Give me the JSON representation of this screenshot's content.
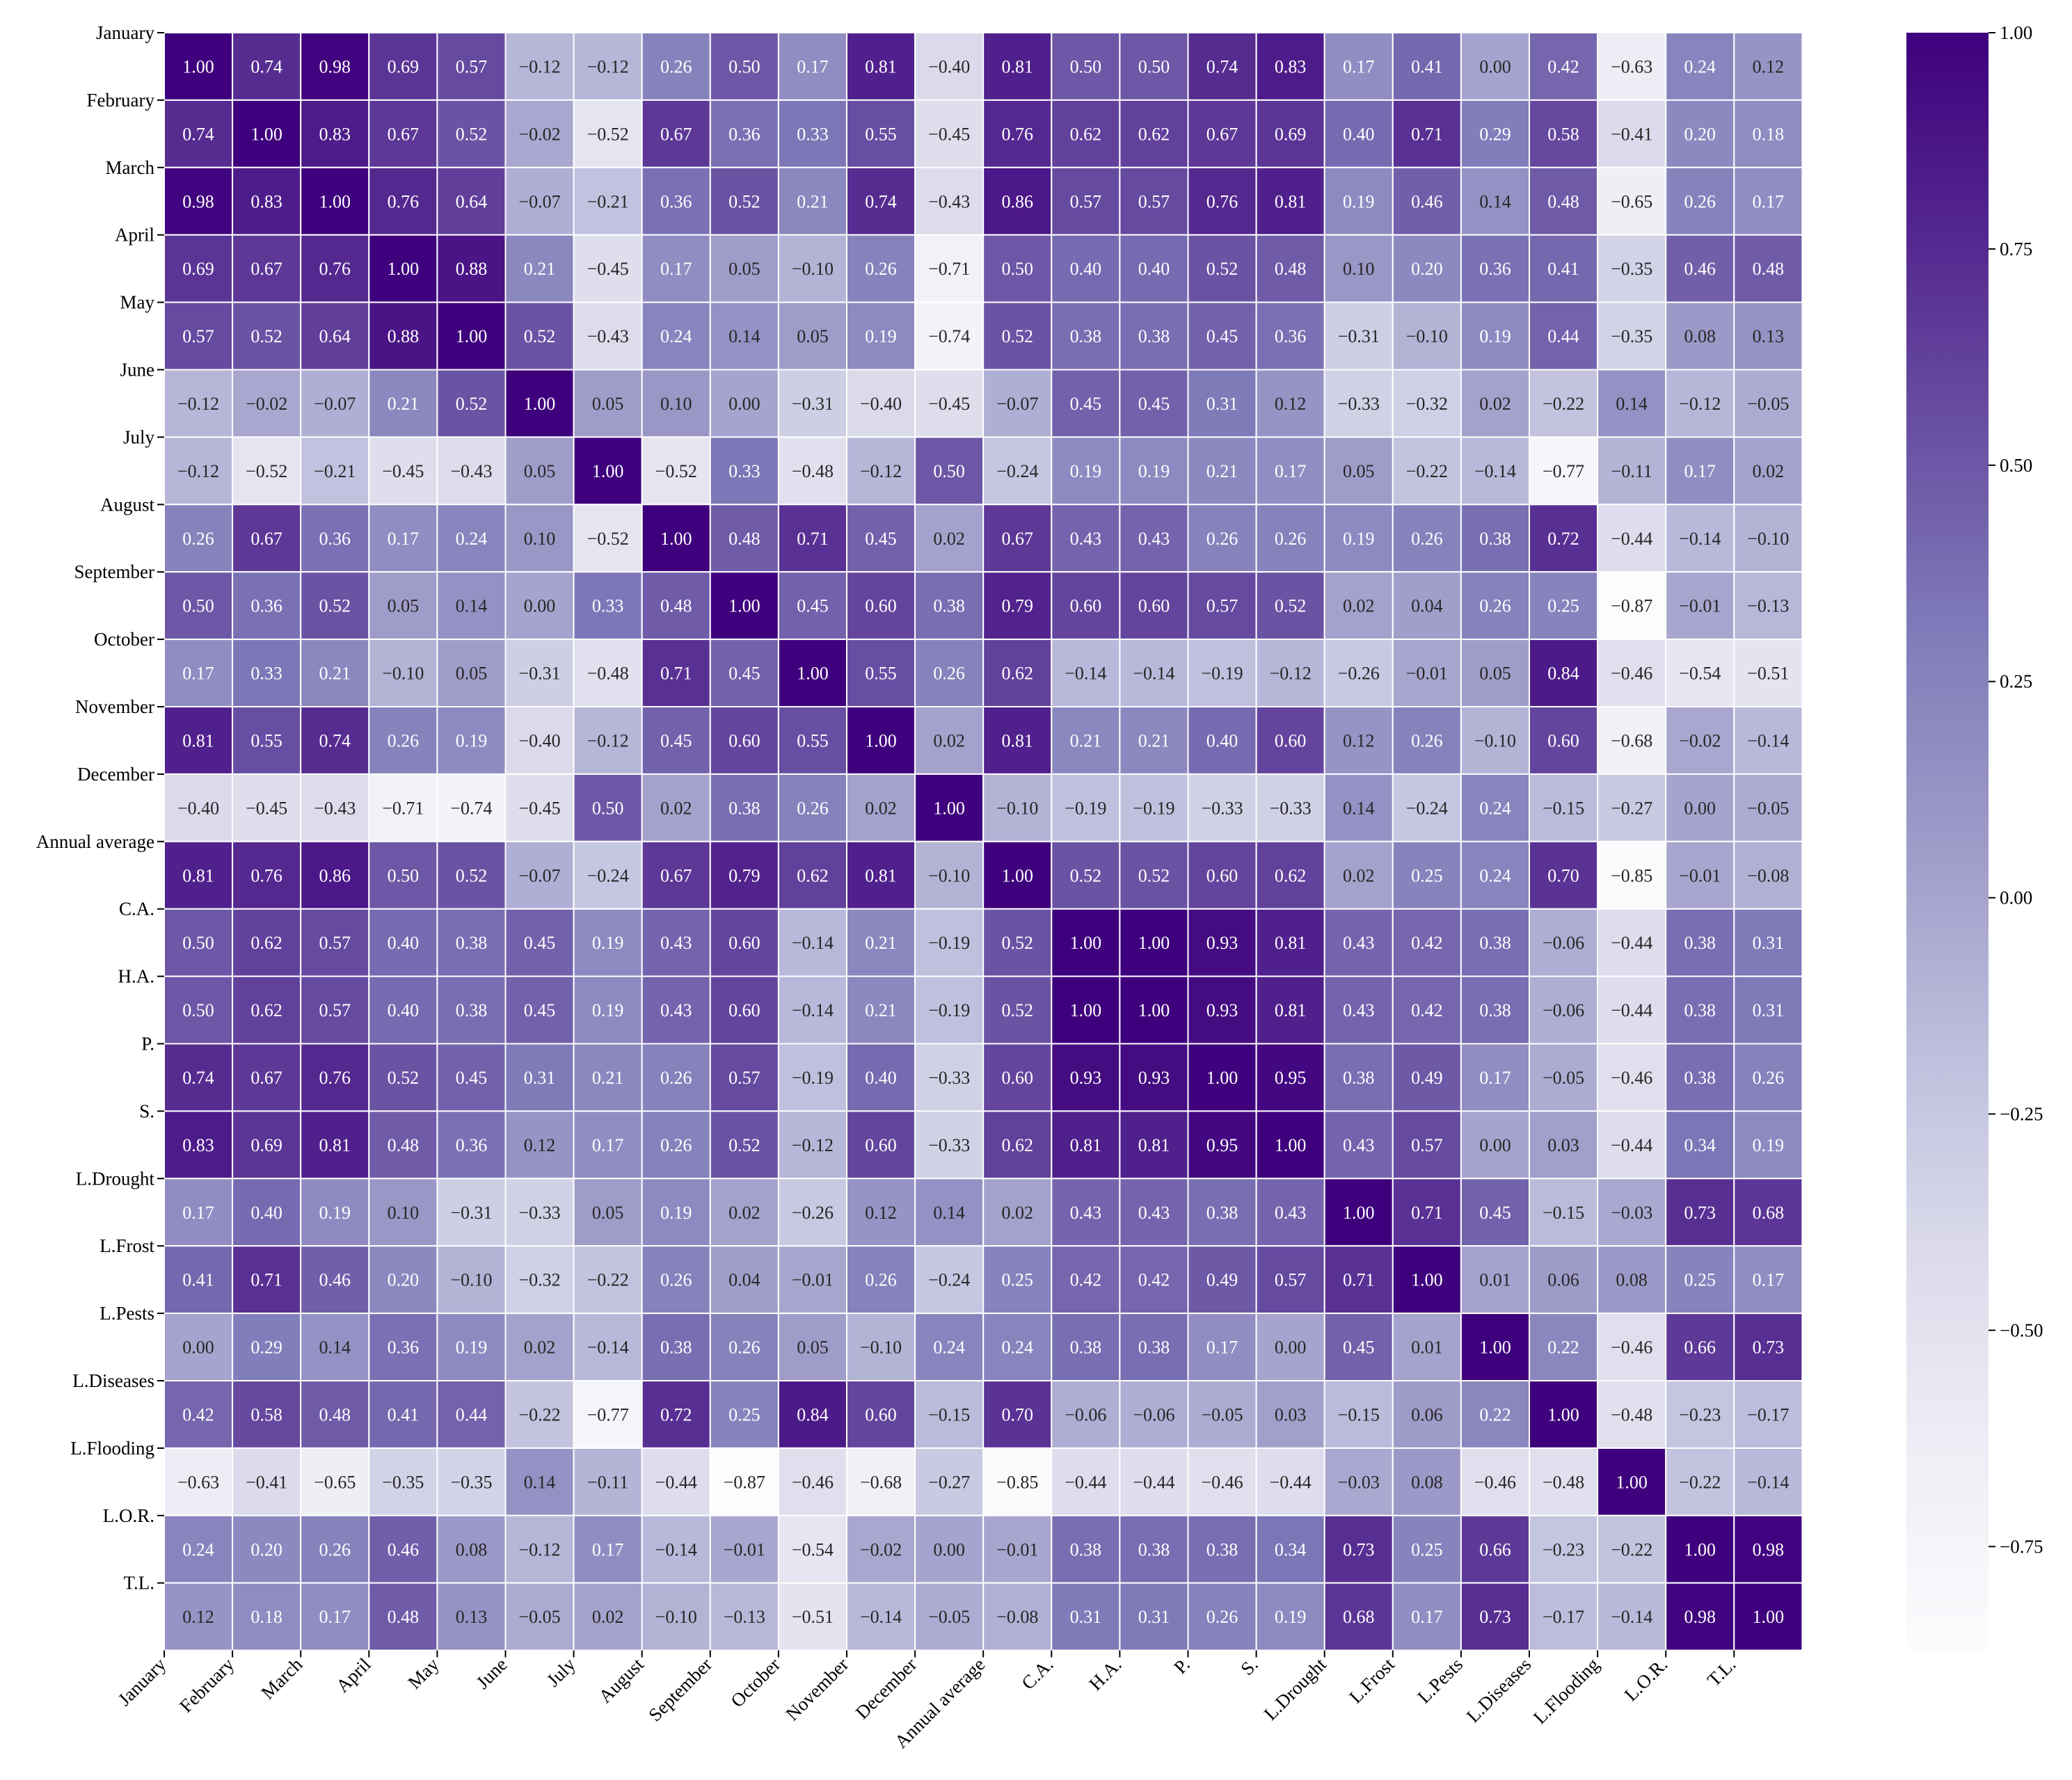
{
  "chart_data": {
    "type": "heatmap",
    "title": "",
    "xlabel": "",
    "ylabel": "",
    "colormap": "Purples",
    "color_low": "#fcfbfd",
    "color_high": "#3f007d",
    "value_range": [
      -0.87,
      1.0
    ],
    "value_format": "2 decimals, minus sign −",
    "labels": [
      "January",
      "February",
      "March",
      "April",
      "May",
      "June",
      "July",
      "August",
      "September",
      "October",
      "November",
      "December",
      "Annual average",
      "C.A.",
      "H.A.",
      "P.",
      "S.",
      "L.Drought",
      "L.Frost",
      "L.Pests",
      "L.Diseases",
      "L.Flooding",
      "L.O.R.",
      "T.L."
    ],
    "matrix": [
      [
        1.0,
        0.74,
        0.98,
        0.69,
        0.57,
        -0.12,
        -0.12,
        0.26,
        0.5,
        0.17,
        0.81,
        -0.4,
        0.81,
        0.5,
        0.5,
        0.74,
        0.83,
        0.17,
        0.41,
        0.0,
        0.42,
        -0.63,
        0.24,
        0.12
      ],
      [
        0.74,
        1.0,
        0.83,
        0.67,
        0.52,
        -0.02,
        -0.52,
        0.67,
        0.36,
        0.33,
        0.55,
        -0.45,
        0.76,
        0.62,
        0.62,
        0.67,
        0.69,
        0.4,
        0.71,
        0.29,
        0.58,
        -0.41,
        0.2,
        0.18
      ],
      [
        0.98,
        0.83,
        1.0,
        0.76,
        0.64,
        -0.07,
        -0.21,
        0.36,
        0.52,
        0.21,
        0.74,
        -0.43,
        0.86,
        0.57,
        0.57,
        0.76,
        0.81,
        0.19,
        0.46,
        0.14,
        0.48,
        -0.65,
        0.26,
        0.17
      ],
      [
        0.69,
        0.67,
        0.76,
        1.0,
        0.88,
        0.21,
        -0.45,
        0.17,
        0.05,
        -0.1,
        0.26,
        -0.71,
        0.5,
        0.4,
        0.4,
        0.52,
        0.48,
        0.1,
        0.2,
        0.36,
        0.41,
        -0.35,
        0.46,
        0.48
      ],
      [
        0.57,
        0.52,
        0.64,
        0.88,
        1.0,
        0.52,
        -0.43,
        0.24,
        0.14,
        0.05,
        0.19,
        -0.74,
        0.52,
        0.38,
        0.38,
        0.45,
        0.36,
        -0.31,
        -0.1,
        0.19,
        0.44,
        -0.35,
        0.08,
        0.13
      ],
      [
        -0.12,
        -0.02,
        -0.07,
        0.21,
        0.52,
        1.0,
        0.05,
        0.1,
        0.0,
        -0.31,
        -0.4,
        -0.45,
        -0.07,
        0.45,
        0.45,
        0.31,
        0.12,
        -0.33,
        -0.32,
        0.02,
        -0.22,
        0.14,
        -0.12,
        -0.05
      ],
      [
        -0.12,
        -0.52,
        -0.21,
        -0.45,
        -0.43,
        0.05,
        1.0,
        -0.52,
        0.33,
        -0.48,
        -0.12,
        0.5,
        -0.24,
        0.19,
        0.19,
        0.21,
        0.17,
        0.05,
        -0.22,
        -0.14,
        -0.77,
        -0.11,
        0.17,
        0.02
      ],
      [
        0.26,
        0.67,
        0.36,
        0.17,
        0.24,
        0.1,
        -0.52,
        1.0,
        0.48,
        0.71,
        0.45,
        0.02,
        0.67,
        0.43,
        0.43,
        0.26,
        0.26,
        0.19,
        0.26,
        0.38,
        0.72,
        -0.44,
        -0.14,
        -0.1
      ],
      [
        0.5,
        0.36,
        0.52,
        0.05,
        0.14,
        0.0,
        0.33,
        0.48,
        1.0,
        0.45,
        0.6,
        0.38,
        0.79,
        0.6,
        0.6,
        0.57,
        0.52,
        0.02,
        0.04,
        0.26,
        0.25,
        -0.87,
        -0.01,
        -0.13
      ],
      [
        0.17,
        0.33,
        0.21,
        -0.1,
        0.05,
        -0.31,
        -0.48,
        0.71,
        0.45,
        1.0,
        0.55,
        0.26,
        0.62,
        -0.14,
        -0.14,
        -0.19,
        -0.12,
        -0.26,
        -0.01,
        0.05,
        0.84,
        -0.46,
        -0.54,
        -0.51
      ],
      [
        0.81,
        0.55,
        0.74,
        0.26,
        0.19,
        -0.4,
        -0.12,
        0.45,
        0.6,
        0.55,
        1.0,
        0.02,
        0.81,
        0.21,
        0.21,
        0.4,
        0.6,
        0.12,
        0.26,
        -0.1,
        0.6,
        -0.68,
        -0.02,
        -0.14
      ],
      [
        -0.4,
        -0.45,
        -0.43,
        -0.71,
        -0.74,
        -0.45,
        0.5,
        0.02,
        0.38,
        0.26,
        0.02,
        1.0,
        -0.1,
        -0.19,
        -0.19,
        -0.33,
        -0.33,
        0.14,
        -0.24,
        0.24,
        -0.15,
        -0.27,
        0.0,
        -0.05
      ],
      [
        0.81,
        0.76,
        0.86,
        0.5,
        0.52,
        -0.07,
        -0.24,
        0.67,
        0.79,
        0.62,
        0.81,
        -0.1,
        1.0,
        0.52,
        0.52,
        0.6,
        0.62,
        0.02,
        0.25,
        0.24,
        0.7,
        -0.85,
        -0.01,
        -0.08
      ],
      [
        0.5,
        0.62,
        0.57,
        0.4,
        0.38,
        0.45,
        0.19,
        0.43,
        0.6,
        -0.14,
        0.21,
        -0.19,
        0.52,
        1.0,
        1.0,
        0.93,
        0.81,
        0.43,
        0.42,
        0.38,
        -0.06,
        -0.44,
        0.38,
        0.31
      ],
      [
        0.5,
        0.62,
        0.57,
        0.4,
        0.38,
        0.45,
        0.19,
        0.43,
        0.6,
        -0.14,
        0.21,
        -0.19,
        0.52,
        1.0,
        1.0,
        0.93,
        0.81,
        0.43,
        0.42,
        0.38,
        -0.06,
        -0.44,
        0.38,
        0.31
      ],
      [
        0.74,
        0.67,
        0.76,
        0.52,
        0.45,
        0.31,
        0.21,
        0.26,
        0.57,
        -0.19,
        0.4,
        -0.33,
        0.6,
        0.93,
        0.93,
        1.0,
        0.95,
        0.38,
        0.49,
        0.17,
        -0.05,
        -0.46,
        0.38,
        0.26
      ],
      [
        0.83,
        0.69,
        0.81,
        0.48,
        0.36,
        0.12,
        0.17,
        0.26,
        0.52,
        -0.12,
        0.6,
        -0.33,
        0.62,
        0.81,
        0.81,
        0.95,
        1.0,
        0.43,
        0.57,
        0.0,
        0.03,
        -0.44,
        0.34,
        0.19
      ],
      [
        0.17,
        0.4,
        0.19,
        0.1,
        -0.31,
        -0.33,
        0.05,
        0.19,
        0.02,
        -0.26,
        0.12,
        0.14,
        0.02,
        0.43,
        0.43,
        0.38,
        0.43,
        1.0,
        0.71,
        0.45,
        -0.15,
        -0.03,
        0.73,
        0.68
      ],
      [
        0.41,
        0.71,
        0.46,
        0.2,
        -0.1,
        -0.32,
        -0.22,
        0.26,
        0.04,
        -0.01,
        0.26,
        -0.24,
        0.25,
        0.42,
        0.42,
        0.49,
        0.57,
        0.71,
        1.0,
        0.01,
        0.06,
        0.08,
        0.25,
        0.17
      ],
      [
        0.0,
        0.29,
        0.14,
        0.36,
        0.19,
        0.02,
        -0.14,
        0.38,
        0.26,
        0.05,
        -0.1,
        0.24,
        0.24,
        0.38,
        0.38,
        0.17,
        0.0,
        0.45,
        0.01,
        1.0,
        0.22,
        -0.46,
        0.66,
        0.73
      ],
      [
        0.42,
        0.58,
        0.48,
        0.41,
        0.44,
        -0.22,
        -0.77,
        0.72,
        0.25,
        0.84,
        0.6,
        -0.15,
        0.7,
        -0.06,
        -0.06,
        -0.05,
        0.03,
        -0.15,
        0.06,
        0.22,
        1.0,
        -0.48,
        -0.23,
        -0.17
      ],
      [
        -0.63,
        -0.41,
        -0.65,
        -0.35,
        -0.35,
        0.14,
        -0.11,
        -0.44,
        -0.87,
        -0.46,
        -0.68,
        -0.27,
        -0.85,
        -0.44,
        -0.44,
        -0.46,
        -0.44,
        -0.03,
        0.08,
        -0.46,
        -0.48,
        1.0,
        -0.22,
        -0.14
      ],
      [
        0.24,
        0.2,
        0.26,
        0.46,
        0.08,
        -0.12,
        0.17,
        -0.14,
        -0.01,
        -0.54,
        -0.02,
        0.0,
        -0.01,
        0.38,
        0.38,
        0.38,
        0.34,
        0.73,
        0.25,
        0.66,
        -0.23,
        -0.22,
        1.0,
        0.98
      ],
      [
        0.12,
        0.18,
        0.17,
        0.48,
        0.13,
        -0.05,
        0.02,
        -0.1,
        -0.13,
        -0.51,
        -0.14,
        -0.05,
        -0.08,
        0.31,
        0.31,
        0.26,
        0.19,
        0.68,
        0.17,
        0.73,
        -0.17,
        -0.14,
        0.98,
        1.0
      ]
    ],
    "colorbar": {
      "ticks": [
        1.0,
        0.75,
        0.5,
        0.25,
        0.0,
        -0.25,
        -0.5,
        -0.75
      ],
      "tick_labels": [
        "1.00",
        "0.75",
        "0.50",
        "0.25",
        "0.00",
        "−0.25",
        "−0.50",
        "−0.75"
      ],
      "range": [
        -0.87,
        1.0
      ]
    }
  }
}
